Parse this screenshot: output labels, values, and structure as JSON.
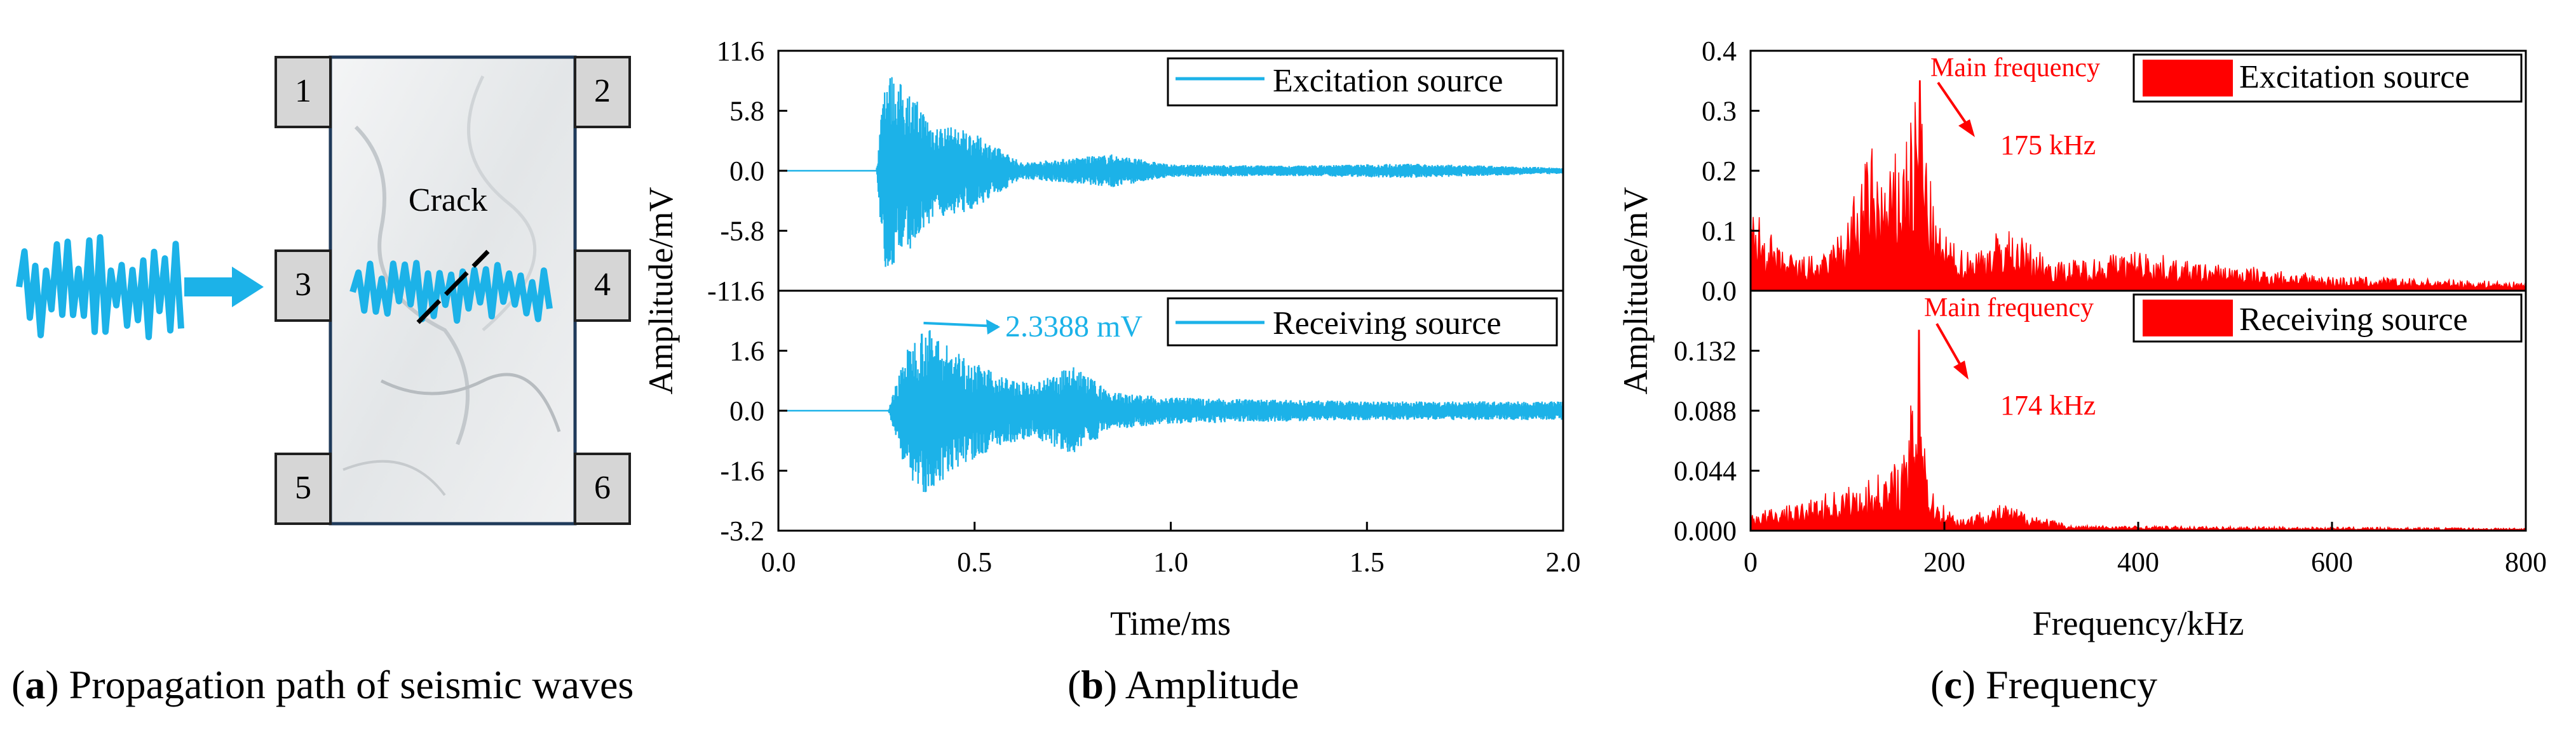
{
  "panel_a": {
    "label": "Crack",
    "sensors": [
      "1",
      "2",
      "3",
      "4",
      "5",
      "6"
    ],
    "wave_color": "#1cb2e8",
    "specimen_color": "#e9ecee",
    "box_color": "#d6d6d6"
  },
  "captions": {
    "a": {
      "letter": "a",
      "text": " Propagation path of seismic waves"
    },
    "b": {
      "letter": "b",
      "text": " Amplitude"
    },
    "c": {
      "letter": "c",
      "text": " Frequency"
    }
  },
  "chart_data": [
    {
      "type": "line",
      "title": "",
      "xlabel": "Time/ms",
      "ylabel": "Amplitude/mV",
      "xlim": [
        0,
        2.0
      ],
      "x_ticks": [
        "0.0",
        "0.5",
        "1.0",
        "1.5",
        "2.0"
      ],
      "color": "#1cb2e8",
      "subplots": [
        {
          "name": "Excitation source",
          "ylim": [
            -11.6,
            11.6
          ],
          "y_ticks": [
            "11.6",
            "5.8",
            "0.0",
            "-5.8",
            "-11.6"
          ],
          "envelope_peaks": [
            [
              0.0,
              0
            ],
            [
              0.25,
              0
            ],
            [
              0.27,
              10.0
            ],
            [
              0.3,
              9.0
            ],
            [
              0.35,
              7.0
            ],
            [
              0.4,
              4.5
            ],
            [
              0.48,
              4.0
            ],
            [
              0.55,
              2.5
            ],
            [
              0.62,
              0.8
            ],
            [
              0.85,
              1.6
            ],
            [
              1.0,
              0.6
            ],
            [
              1.3,
              0.5
            ],
            [
              1.6,
              0.7
            ],
            [
              2.0,
              0.3
            ]
          ]
        },
        {
          "name": "Receiving source",
          "ylim": [
            -3.2,
            3.2
          ],
          "y_ticks": [
            "1.6",
            "0.0",
            "-1.6",
            "-3.2"
          ],
          "annotation": "2.3388 mV",
          "peak": {
            "x": 0.37,
            "y": 2.3388
          },
          "envelope_peaks": [
            [
              0.0,
              0
            ],
            [
              0.28,
              0
            ],
            [
              0.32,
              1.5
            ],
            [
              0.37,
              2.3388
            ],
            [
              0.45,
              1.6
            ],
            [
              0.55,
              1.0
            ],
            [
              0.65,
              0.7
            ],
            [
              0.75,
              1.2
            ],
            [
              0.85,
              0.5
            ],
            [
              1.0,
              0.35
            ],
            [
              1.5,
              0.25
            ],
            [
              2.0,
              0.25
            ]
          ]
        }
      ]
    },
    {
      "type": "bar",
      "title": "",
      "xlabel": "Frequency/kHz",
      "ylabel": "Amplitude/mV",
      "xlim": [
        0,
        800
      ],
      "x_ticks": [
        "0",
        "200",
        "400",
        "600",
        "800"
      ],
      "color": "#ff0000",
      "subplots": [
        {
          "name": "Excitation source",
          "ylim": [
            0.0,
            0.4
          ],
          "y_ticks": [
            "0.4",
            "0.3",
            "0.2",
            "0.1",
            "0.0"
          ],
          "main_label": "Main frequency",
          "main_value": "175 kHz",
          "peak": {
            "x": 175,
            "y": 0.35
          },
          "spectrum_peaks": [
            [
              5,
              0.14
            ],
            [
              30,
              0.07
            ],
            [
              50,
              0.06
            ],
            [
              75,
              0.06
            ],
            [
              95,
              0.11
            ],
            [
              125,
              0.25
            ],
            [
              140,
              0.19
            ],
            [
              165,
              0.3
            ],
            [
              175,
              0.35
            ],
            [
              190,
              0.12
            ],
            [
              215,
              0.07
            ],
            [
              240,
              0.08
            ],
            [
              260,
              0.11
            ],
            [
              320,
              0.05
            ],
            [
              400,
              0.07
            ],
            [
              450,
              0.05
            ],
            [
              520,
              0.04
            ],
            [
              600,
              0.025
            ],
            [
              700,
              0.02
            ],
            [
              795,
              0.015
            ]
          ]
        },
        {
          "name": "Receiving source",
          "ylim": [
            0.0,
            0.176
          ],
          "y_ticks": [
            "0.132",
            "0.088",
            "0.044",
            "0.000"
          ],
          "main_label": "Main frequency",
          "main_value": "174 kHz",
          "peak": {
            "x": 174,
            "y": 0.147
          },
          "spectrum_peaks": [
            [
              5,
              0.015
            ],
            [
              50,
              0.02
            ],
            [
              85,
              0.03
            ],
            [
              110,
              0.035
            ],
            [
              140,
              0.045
            ],
            [
              160,
              0.06
            ],
            [
              174,
              0.147
            ],
            [
              185,
              0.03
            ],
            [
              215,
              0.01
            ],
            [
              260,
              0.02
            ],
            [
              330,
              0.004
            ],
            [
              500,
              0.003
            ],
            [
              795,
              0.002
            ]
          ]
        }
      ]
    }
  ]
}
